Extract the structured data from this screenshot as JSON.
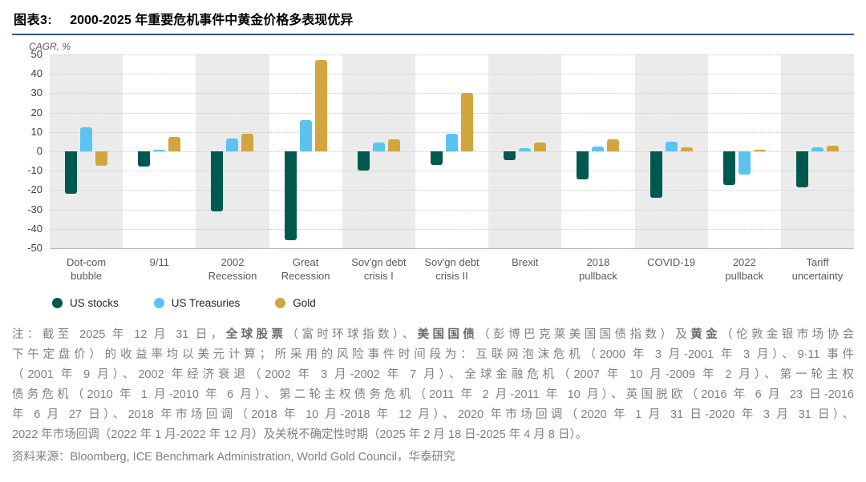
{
  "title": {
    "tag": "图表3:",
    "text": "2000-2025 年重要危机事件中黄金价格多表现优异"
  },
  "accent_colors": {
    "rule_blue": "#2e5a87",
    "band_gray": "#ebebeb"
  },
  "chart_data": {
    "type": "bar",
    "axis_title": "CAGR, %",
    "categories": [
      "Dot-com\nbubble",
      "9/11",
      "2002\nRecession",
      "Great\nRecession",
      "Sov'gn debt\ncrisis I",
      "Sov'gn debt\ncrisis II",
      "Brexit",
      "2018\npullback",
      "COVID-19",
      "2022\npullback",
      "Tariff\nuncertainty"
    ],
    "series": [
      {
        "name": "US stocks",
        "color": "#00594e",
        "values": [
          -22,
          -8,
          -31,
          -46,
          -10,
          -7,
          -4.5,
          -14.5,
          -24,
          -17.5,
          -18.5
        ]
      },
      {
        "name": "US Treasuries",
        "color": "#5cc3f0",
        "values": [
          12.5,
          1,
          6.5,
          16,
          4.5,
          9,
          1.5,
          2.5,
          5,
          -12,
          2
        ]
      },
      {
        "name": "Gold",
        "color": "#d3a53e",
        "values": [
          -7.5,
          7.5,
          9,
          47,
          6,
          30,
          4.5,
          6,
          2,
          1,
          3
        ]
      }
    ],
    "ylim": [
      -50,
      50
    ],
    "yticks": [
      50,
      40,
      30,
      20,
      10,
      0,
      -10,
      -20,
      -30,
      -40,
      -50
    ],
    "grid": "dotted-horizontal",
    "legend_position": "bottom-left",
    "shaded_band_indices": [
      0,
      2,
      4,
      6,
      8,
      10
    ]
  },
  "notes": {
    "lines": [
      [
        {
          "t": "注：截至 2025 年 12 月 31 日，",
          "b": false
        },
        {
          "t": "全球股票",
          "b": true
        },
        {
          "t": "（富时环球指数）、",
          "b": false
        },
        {
          "t": "美国国债",
          "b": true
        },
        {
          "t": "（彭博巴克莱美国国债指数）及",
          "b": false
        },
        {
          "t": "黄金",
          "b": true
        },
        {
          "t": "（伦敦金银市场协会",
          "b": false
        }
      ],
      [
        {
          "t": "下午定盘价）的收益率均以美元计算；所采用的风险事件时间段为：互联网泡沫危机（2000 年 3 月-2001 年 3 月）、9·11 事件",
          "b": false
        }
      ],
      [
        {
          "t": "（2001 年 9 月）、2002 年经济衰退（2002 年 3 月-2002 年 7 月）、全球金融危机（2007 年 10 月-2009 年 2 月）、第一轮主权",
          "b": false
        }
      ],
      [
        {
          "t": "债务危机（2010 年 1 月-2010 年 6 月）、第二轮主权债务危机（2011 年 2 月-2011 年 10 月）、英国脱欧（2016 年 6 月 23 日-2016",
          "b": false
        }
      ],
      [
        {
          "t": "年 6 月 27 日）、2018 年市场回调（2018 年 10 月-2018 年 12 月）、2020 年市场回调（2020 年 1 月 31 日-2020 年 3 月 31 日）、",
          "b": false
        }
      ],
      [
        {
          "t": "2022 年市场回调（2022 年 1 月-2022 年 12 月）及关税不确定性时期（2025 年 2 月 18 日-2025 年 4 月 8 日）。",
          "b": false
        }
      ]
    ]
  },
  "source": {
    "label": "资料来源：",
    "text": "Bloomberg, ICE Benchmark Administration, World Gold Council，华泰研究"
  }
}
